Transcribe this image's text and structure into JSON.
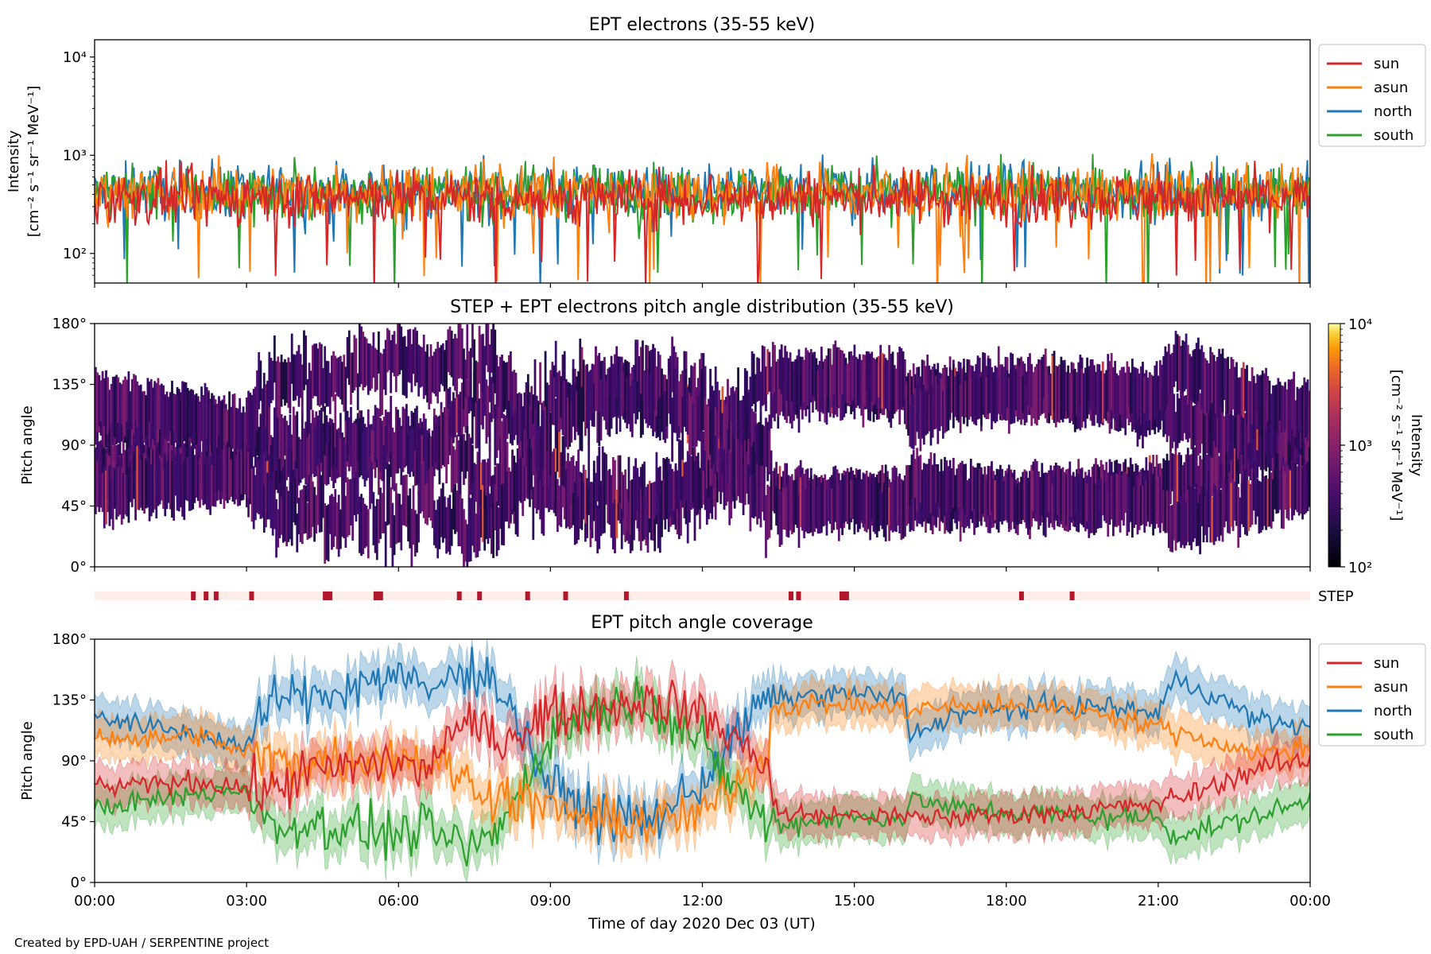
{
  "footer": "Created by EPD-UAH / SERPENTINE project",
  "colors": {
    "sun": "#d62728",
    "asun": "#ff7f0e",
    "north": "#1f77b4",
    "south": "#2ca02c",
    "step_bar_bg": "#fdeee9",
    "step_marker": "#b2182b"
  },
  "chart_data": [
    {
      "type": "line",
      "title": "EPT electrons (35-55 keV)",
      "ylabel": "Intensity",
      "ylabel_units": "[cm⁻² s⁻¹ sr⁻¹ MeV⁻¹]",
      "yscale": "log",
      "ylim": [
        50,
        15000
      ],
      "yticks": [
        "10²",
        "10³",
        "10⁴"
      ],
      "xlim_hours": [
        0,
        24
      ],
      "legend": {
        "placement": "right-top",
        "entries": [
          "sun",
          "asun",
          "north",
          "south"
        ]
      },
      "series": [
        {
          "name": "sun",
          "typical_range": [
            150,
            700
          ],
          "median": 370
        },
        {
          "name": "asun",
          "typical_range": [
            180,
            900
          ],
          "median": 420
        },
        {
          "name": "north",
          "typical_range": [
            180,
            1100
          ],
          "median": 430
        },
        {
          "name": "south",
          "typical_range": [
            180,
            900
          ],
          "median": 420
        }
      ]
    },
    {
      "type": "heatmap",
      "title": "STEP + EPT electrons pitch angle distribution (35-55 keV)",
      "ylabel": "Pitch angle",
      "yticks": [
        "0°",
        "45°",
        "90°",
        "135°",
        "180°"
      ],
      "ylim": [
        0,
        180
      ],
      "xlim_hours": [
        0,
        24
      ],
      "colorbar": {
        "label": "Intensity",
        "units": "[cm⁻² s⁻¹ sr⁻¹ MeV⁻¹]",
        "scale": "log",
        "range": [
          100,
          10000
        ],
        "ticks": [
          "10²",
          "10³",
          "10⁴"
        ],
        "colormap": "inferno"
      },
      "coverage_from": "ept_pitch_angle_coverage"
    },
    {
      "type": "bar",
      "label": "STEP",
      "description": "STEP data availability markers",
      "marker_hours": [
        1.95,
        2.2,
        2.4,
        3.1,
        4.6,
        5.6,
        7.2,
        7.6,
        8.55,
        9.3,
        10.5,
        13.75,
        13.9,
        14.8,
        18.3,
        19.3
      ]
    },
    {
      "type": "area",
      "title": "EPT pitch angle coverage",
      "ylabel": "Pitch angle",
      "yticks": [
        "0°",
        "45°",
        "90°",
        "135°",
        "180°"
      ],
      "ylim": [
        0,
        180
      ],
      "xlabel": "Time of day 2020 Dec 03 (UT)",
      "xticks": [
        "00:00",
        "03:00",
        "06:00",
        "09:00",
        "12:00",
        "15:00",
        "18:00",
        "21:00",
        "00:00"
      ],
      "xlim_hours": [
        0,
        24
      ],
      "band_halfwidth_deg": 15,
      "legend": {
        "placement": "right-top",
        "entries": [
          "sun",
          "asun",
          "north",
          "south"
        ]
      },
      "series": [
        {
          "name": "sun",
          "x": [
            0,
            1,
            2,
            3,
            3.6,
            4,
            5,
            6,
            6.5,
            7,
            7.5,
            8,
            9,
            10,
            11,
            12,
            13,
            13.3,
            13.4,
            13.6,
            14,
            15,
            16,
            17,
            18,
            19,
            20,
            21,
            22,
            23,
            24
          ],
          "y": [
            70,
            72,
            75,
            70,
            68,
            80,
            85,
            90,
            80,
            110,
            115,
            105,
            125,
            130,
            135,
            125,
            95,
            90,
            55,
            50,
            50,
            50,
            48,
            48,
            50,
            52,
            55,
            58,
            70,
            85,
            90
          ]
        },
        {
          "name": "asun",
          "x": [
            0,
            1,
            2,
            3,
            3.6,
            4,
            5,
            6,
            6.5,
            7,
            7.5,
            8,
            9,
            10,
            11,
            12,
            13,
            13.3,
            13.4,
            13.6,
            14,
            15,
            16,
            17,
            18,
            19,
            20,
            21,
            22,
            23,
            24
          ],
          "y": [
            110,
            105,
            110,
            95,
            90,
            90,
            90,
            95,
            90,
            85,
            70,
            65,
            55,
            45,
            45,
            50,
            85,
            100,
            130,
            130,
            132,
            132,
            128,
            130,
            130,
            130,
            125,
            115,
            105,
            95,
            100
          ]
        },
        {
          "name": "north",
          "x": [
            0,
            1,
            2,
            3,
            3.6,
            4,
            5,
            6,
            6.5,
            7,
            7.5,
            8,
            9,
            10,
            11,
            12,
            13,
            13.3,
            13.4,
            13.6,
            14,
            15,
            16,
            16.1,
            17,
            18,
            19,
            20,
            21,
            21.3,
            22,
            23,
            24
          ],
          "y": [
            125,
            115,
            110,
            100,
            140,
            135,
            145,
            155,
            140,
            150,
            160,
            145,
            70,
            50,
            45,
            75,
            125,
            135,
            138,
            135,
            138,
            140,
            135,
            108,
            125,
            128,
            130,
            130,
            125,
            150,
            140,
            120,
            115
          ]
        },
        {
          "name": "south",
          "x": [
            0,
            1,
            2,
            3,
            3.6,
            4,
            5,
            6,
            6.5,
            7,
            7.5,
            8,
            9,
            10,
            11,
            12,
            13,
            13.3,
            13.4,
            13.6,
            14,
            15,
            16,
            16.1,
            17,
            18,
            19,
            20,
            21,
            21.3,
            22,
            23,
            24
          ],
          "y": [
            55,
            60,
            65,
            70,
            35,
            45,
            40,
            35,
            40,
            30,
            25,
            40,
            110,
            130,
            135,
            100,
            55,
            42,
            45,
            42,
            45,
            48,
            48,
            62,
            55,
            52,
            50,
            48,
            48,
            35,
            40,
            50,
            60
          ]
        }
      ]
    }
  ]
}
